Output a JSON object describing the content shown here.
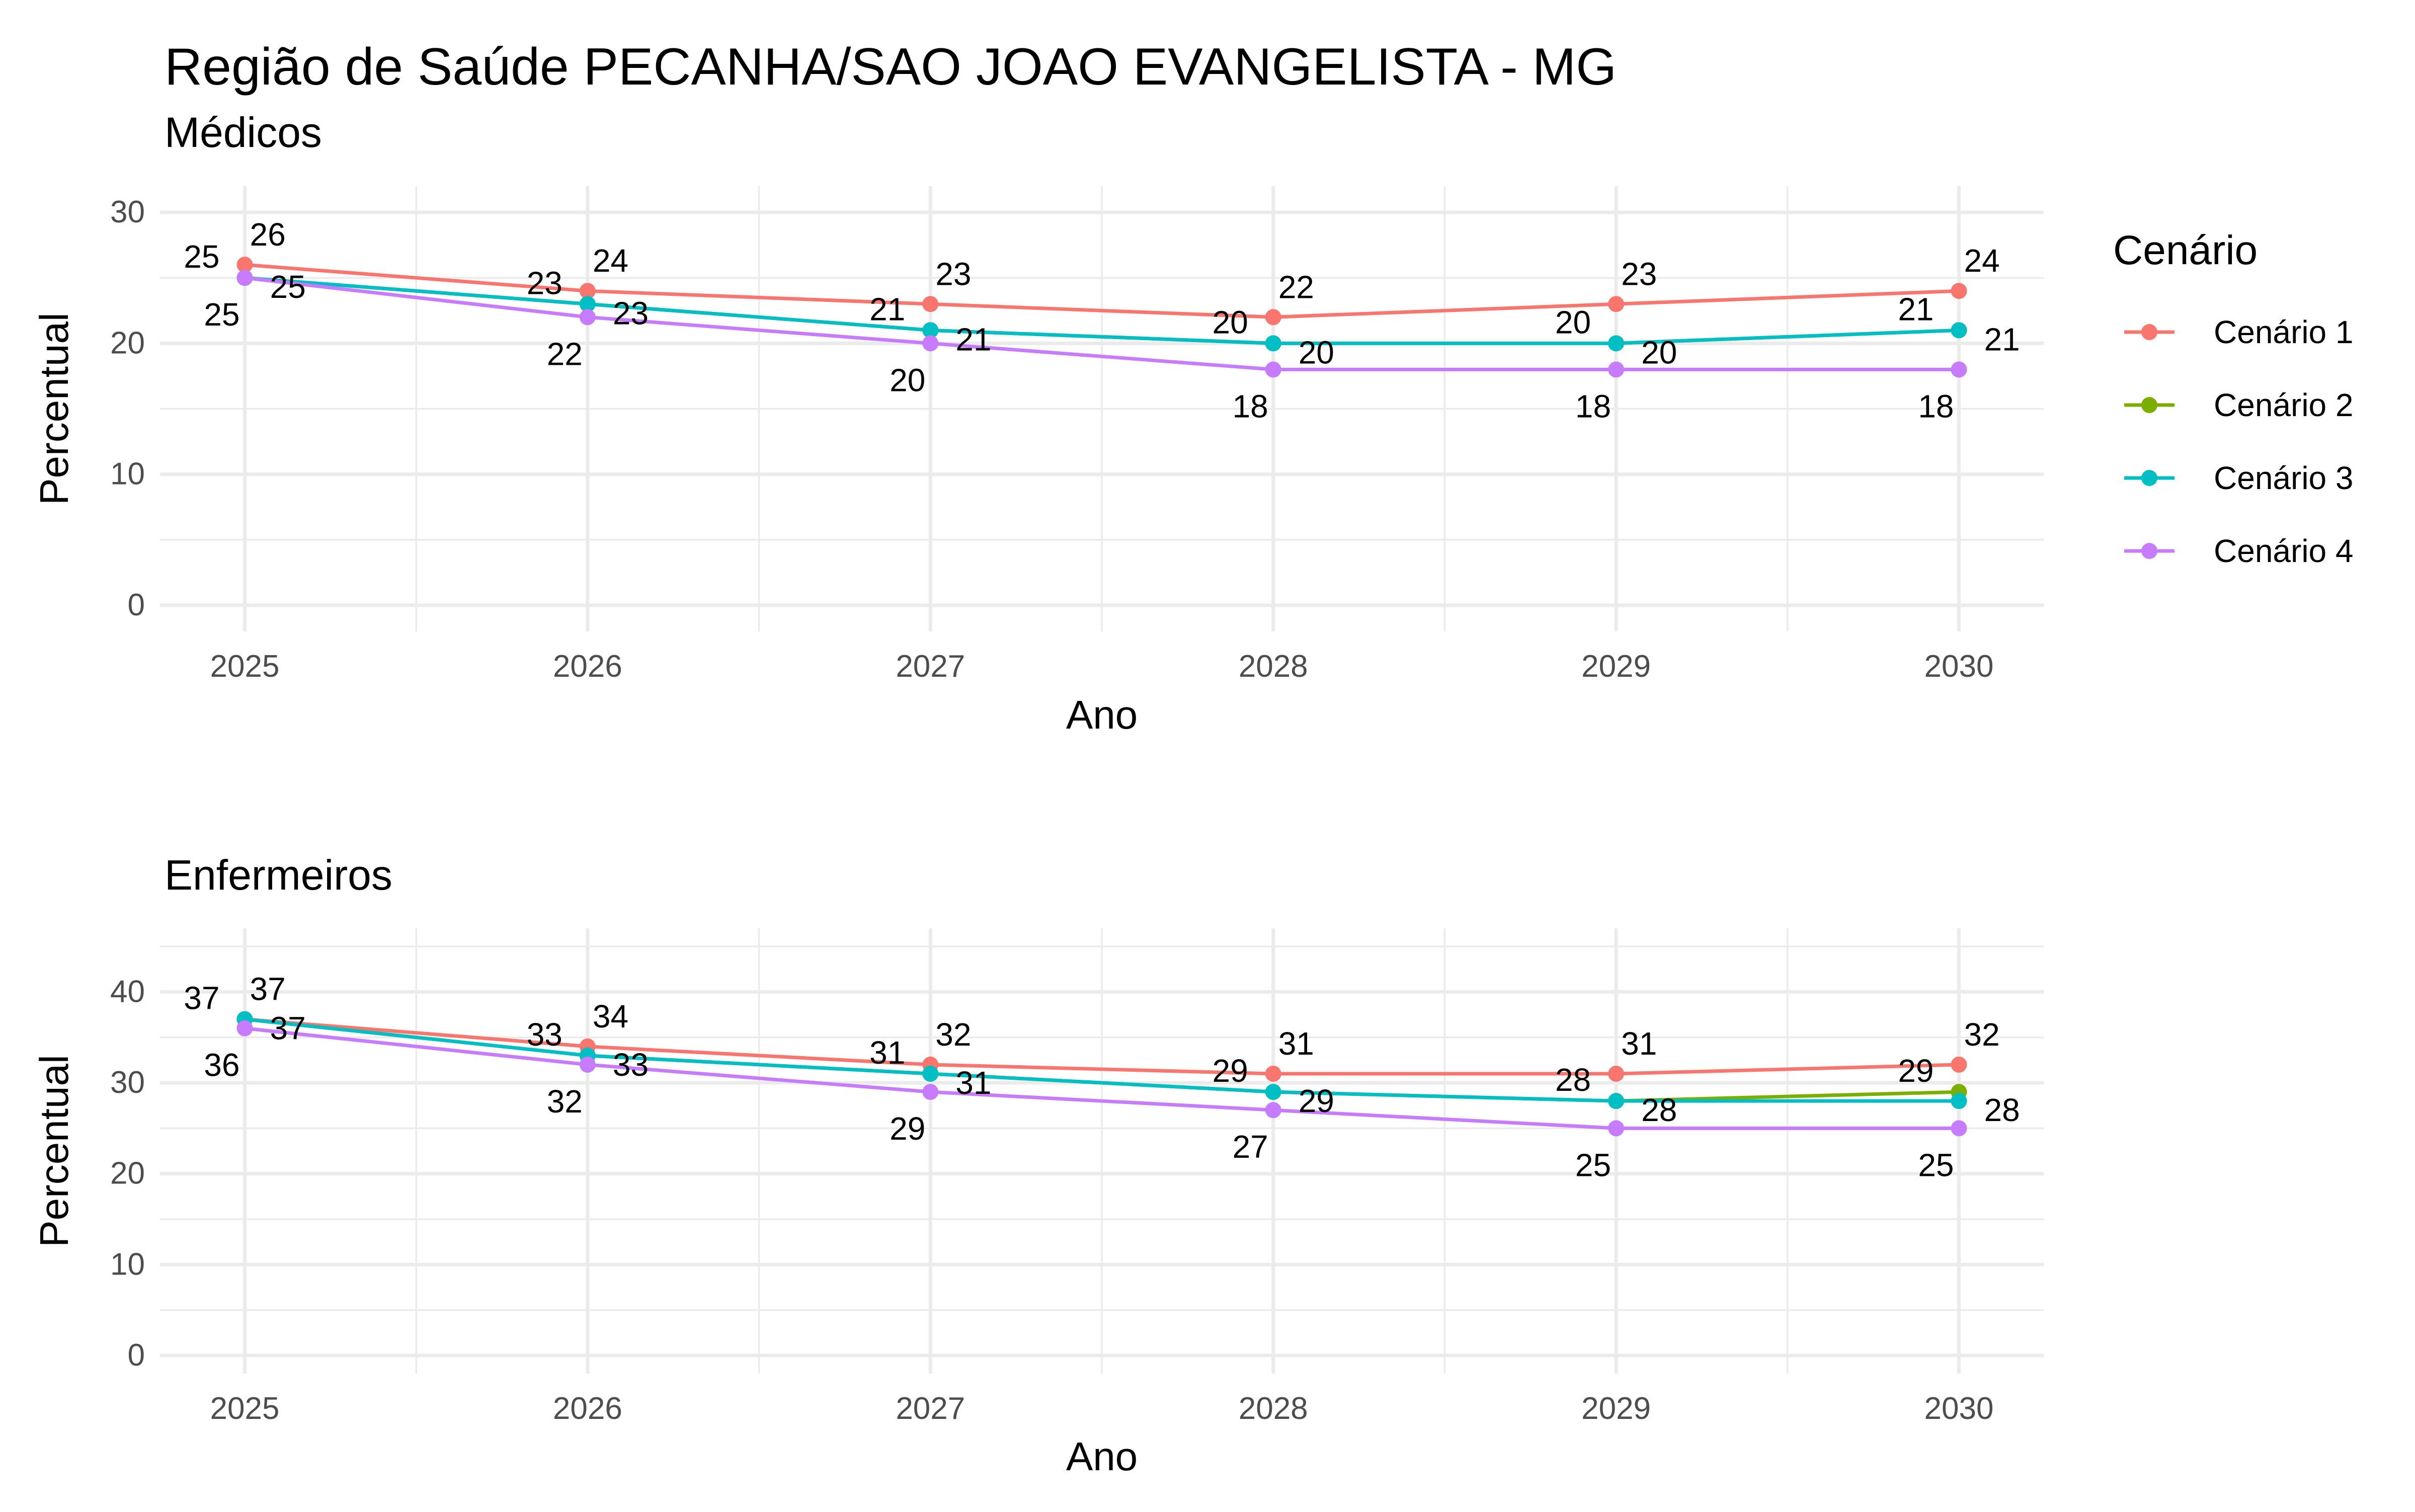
{
  "title": "Região de Saúde PECANHA/SAO JOAO EVANGELISTA - MG",
  "legend": {
    "title": "Cenário",
    "position": "right",
    "items": [
      {
        "name": "Cenário 1",
        "color": "#F8766D"
      },
      {
        "name": "Cenário 2",
        "color": "#7CAE00"
      },
      {
        "name": "Cenário 3",
        "color": "#00BFC4"
      },
      {
        "name": "Cenário 4",
        "color": "#C77CFF"
      }
    ]
  },
  "chart_data": [
    {
      "type": "line",
      "subtitle": "Médicos",
      "xlabel": "Ano",
      "ylabel": "Percentual",
      "x": [
        2025,
        2026,
        2027,
        2028,
        2029,
        2030
      ],
      "x_ticks": [
        "2025",
        "2026",
        "2027",
        "2028",
        "2029",
        "2030"
      ],
      "y_ticks": [
        0,
        10,
        20,
        30
      ],
      "ylim": [
        -2,
        32
      ],
      "grid": true,
      "series": [
        {
          "name": "Cenário 1",
          "color": "#F8766D",
          "values": [
            26,
            24,
            23,
            22,
            23,
            24
          ],
          "labels": [
            "26",
            "24",
            "23",
            "22",
            "23",
            "24"
          ]
        },
        {
          "name": "Cenário 2",
          "color": "#7CAE00",
          "values": [
            25,
            23,
            21,
            20,
            20,
            21
          ],
          "labels": [
            "25",
            "23",
            "21",
            "20",
            "20",
            "21"
          ]
        },
        {
          "name": "Cenário 3",
          "color": "#00BFC4",
          "values": [
            25,
            23,
            21,
            20,
            20,
            21
          ],
          "labels": [
            "25",
            "23",
            "21",
            "20",
            "20",
            "21"
          ]
        },
        {
          "name": "Cenário 4",
          "color": "#C77CFF",
          "values": [
            25,
            22,
            20,
            18,
            18,
            18
          ],
          "labels": [
            "25",
            "22",
            "20",
            "18",
            "18",
            "18"
          ]
        }
      ]
    },
    {
      "type": "line",
      "subtitle": "Enfermeiros",
      "xlabel": "Ano",
      "ylabel": "Percentual",
      "x": [
        2025,
        2026,
        2027,
        2028,
        2029,
        2030
      ],
      "x_ticks": [
        "2025",
        "2026",
        "2027",
        "2028",
        "2029",
        "2030"
      ],
      "y_ticks": [
        0,
        10,
        20,
        30,
        40
      ],
      "ylim": [
        -2,
        47
      ],
      "grid": true,
      "series": [
        {
          "name": "Cenário 1",
          "color": "#F8766D",
          "values": [
            37,
            34,
            32,
            31,
            31,
            32
          ],
          "labels": [
            "37",
            "34",
            "32",
            "31",
            "31",
            "32"
          ]
        },
        {
          "name": "Cenário 2",
          "color": "#7CAE00",
          "values": [
            37,
            33,
            31,
            29,
            28,
            29
          ],
          "labels": [
            "37",
            "33",
            "31",
            "29",
            "28",
            "29"
          ]
        },
        {
          "name": "Cenário 3",
          "color": "#00BFC4",
          "values": [
            37,
            33,
            31,
            29,
            28,
            28
          ],
          "labels": [
            "37",
            "33",
            "31",
            "29",
            "28",
            "28"
          ]
        },
        {
          "name": "Cenário 4",
          "color": "#C77CFF",
          "values": [
            36,
            32,
            29,
            27,
            25,
            25
          ],
          "labels": [
            "36",
            "32",
            "29",
            "27",
            "25",
            "25"
          ]
        }
      ]
    }
  ]
}
